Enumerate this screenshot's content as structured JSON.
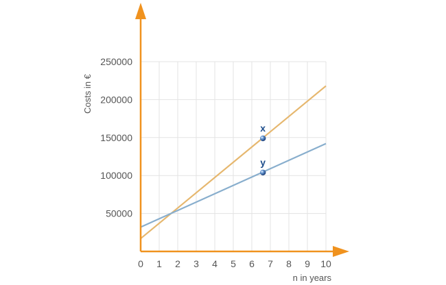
{
  "chart_data": {
    "type": "line",
    "xlabel": "n in years",
    "ylabel": "Costs in €",
    "xlim": [
      0,
      10
    ],
    "ylim": [
      0,
      250000
    ],
    "x_ticks": [
      "0",
      "1",
      "2",
      "3",
      "4",
      "5",
      "6",
      "7",
      "8",
      "9",
      "10"
    ],
    "y_ticks": [
      "50000",
      "100000",
      "150000",
      "200000",
      "250000"
    ],
    "grid": true,
    "series": [
      {
        "name": "",
        "x": [
          0,
          10
        ],
        "values": [
          17000,
          218000
        ],
        "color": "#e6b76e"
      },
      {
        "name": "",
        "x": [
          0,
          10
        ],
        "values": [
          32000,
          142000
        ],
        "color": "#88aecd"
      }
    ],
    "points": [
      {
        "label": "x",
        "x": 6.6,
        "y": 149000
      },
      {
        "label": "y",
        "x": 6.6,
        "y": 104000
      }
    ],
    "axis_color": "#f0921e"
  }
}
